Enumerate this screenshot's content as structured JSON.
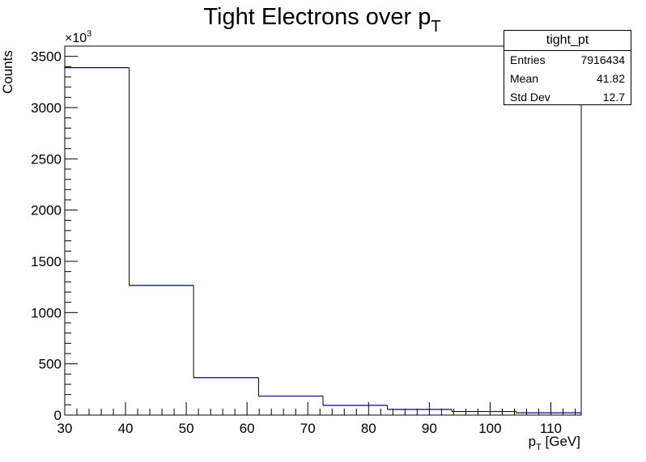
{
  "chart_data": {
    "type": "bar",
    "style": "step histogram",
    "title": {
      "main": "Tight Electrons over p",
      "sub": "T"
    },
    "xlabel": {
      "main": "p",
      "sub": "T",
      "rest": " [GeV]"
    },
    "ylabel": "Counts",
    "y_multiplier": {
      "text": "×10",
      "exp": "3"
    },
    "xlim": [
      30,
      115
    ],
    "ylim": [
      0,
      3600
    ],
    "x_ticks": [
      30,
      40,
      50,
      60,
      70,
      80,
      90,
      100,
      110
    ],
    "x_tick_labels": [
      "30",
      "40",
      "50",
      "60",
      "70",
      "80",
      "90",
      "100",
      "110"
    ],
    "y_ticks": [
      0,
      500,
      1000,
      1500,
      2000,
      2500,
      3000,
      3500
    ],
    "y_tick_labels": [
      "0",
      "500",
      "1000",
      "1500",
      "2000",
      "2500",
      "3000",
      "3500"
    ],
    "bin_edges": [
      30,
      40.6,
      51.2,
      61.9,
      72.5,
      83.1,
      93.7,
      104.3,
      115
    ],
    "values": [
      3390,
      1265,
      365,
      185,
      95,
      55,
      35,
      22
    ],
    "line_color": "#000099"
  },
  "stats_box": {
    "name": "tight_pt",
    "rows": [
      {
        "label": "Entries",
        "value": "7916434"
      },
      {
        "label": "Mean",
        "value": "41.82"
      },
      {
        "label": "Std Dev",
        "value": "12.7"
      }
    ]
  }
}
